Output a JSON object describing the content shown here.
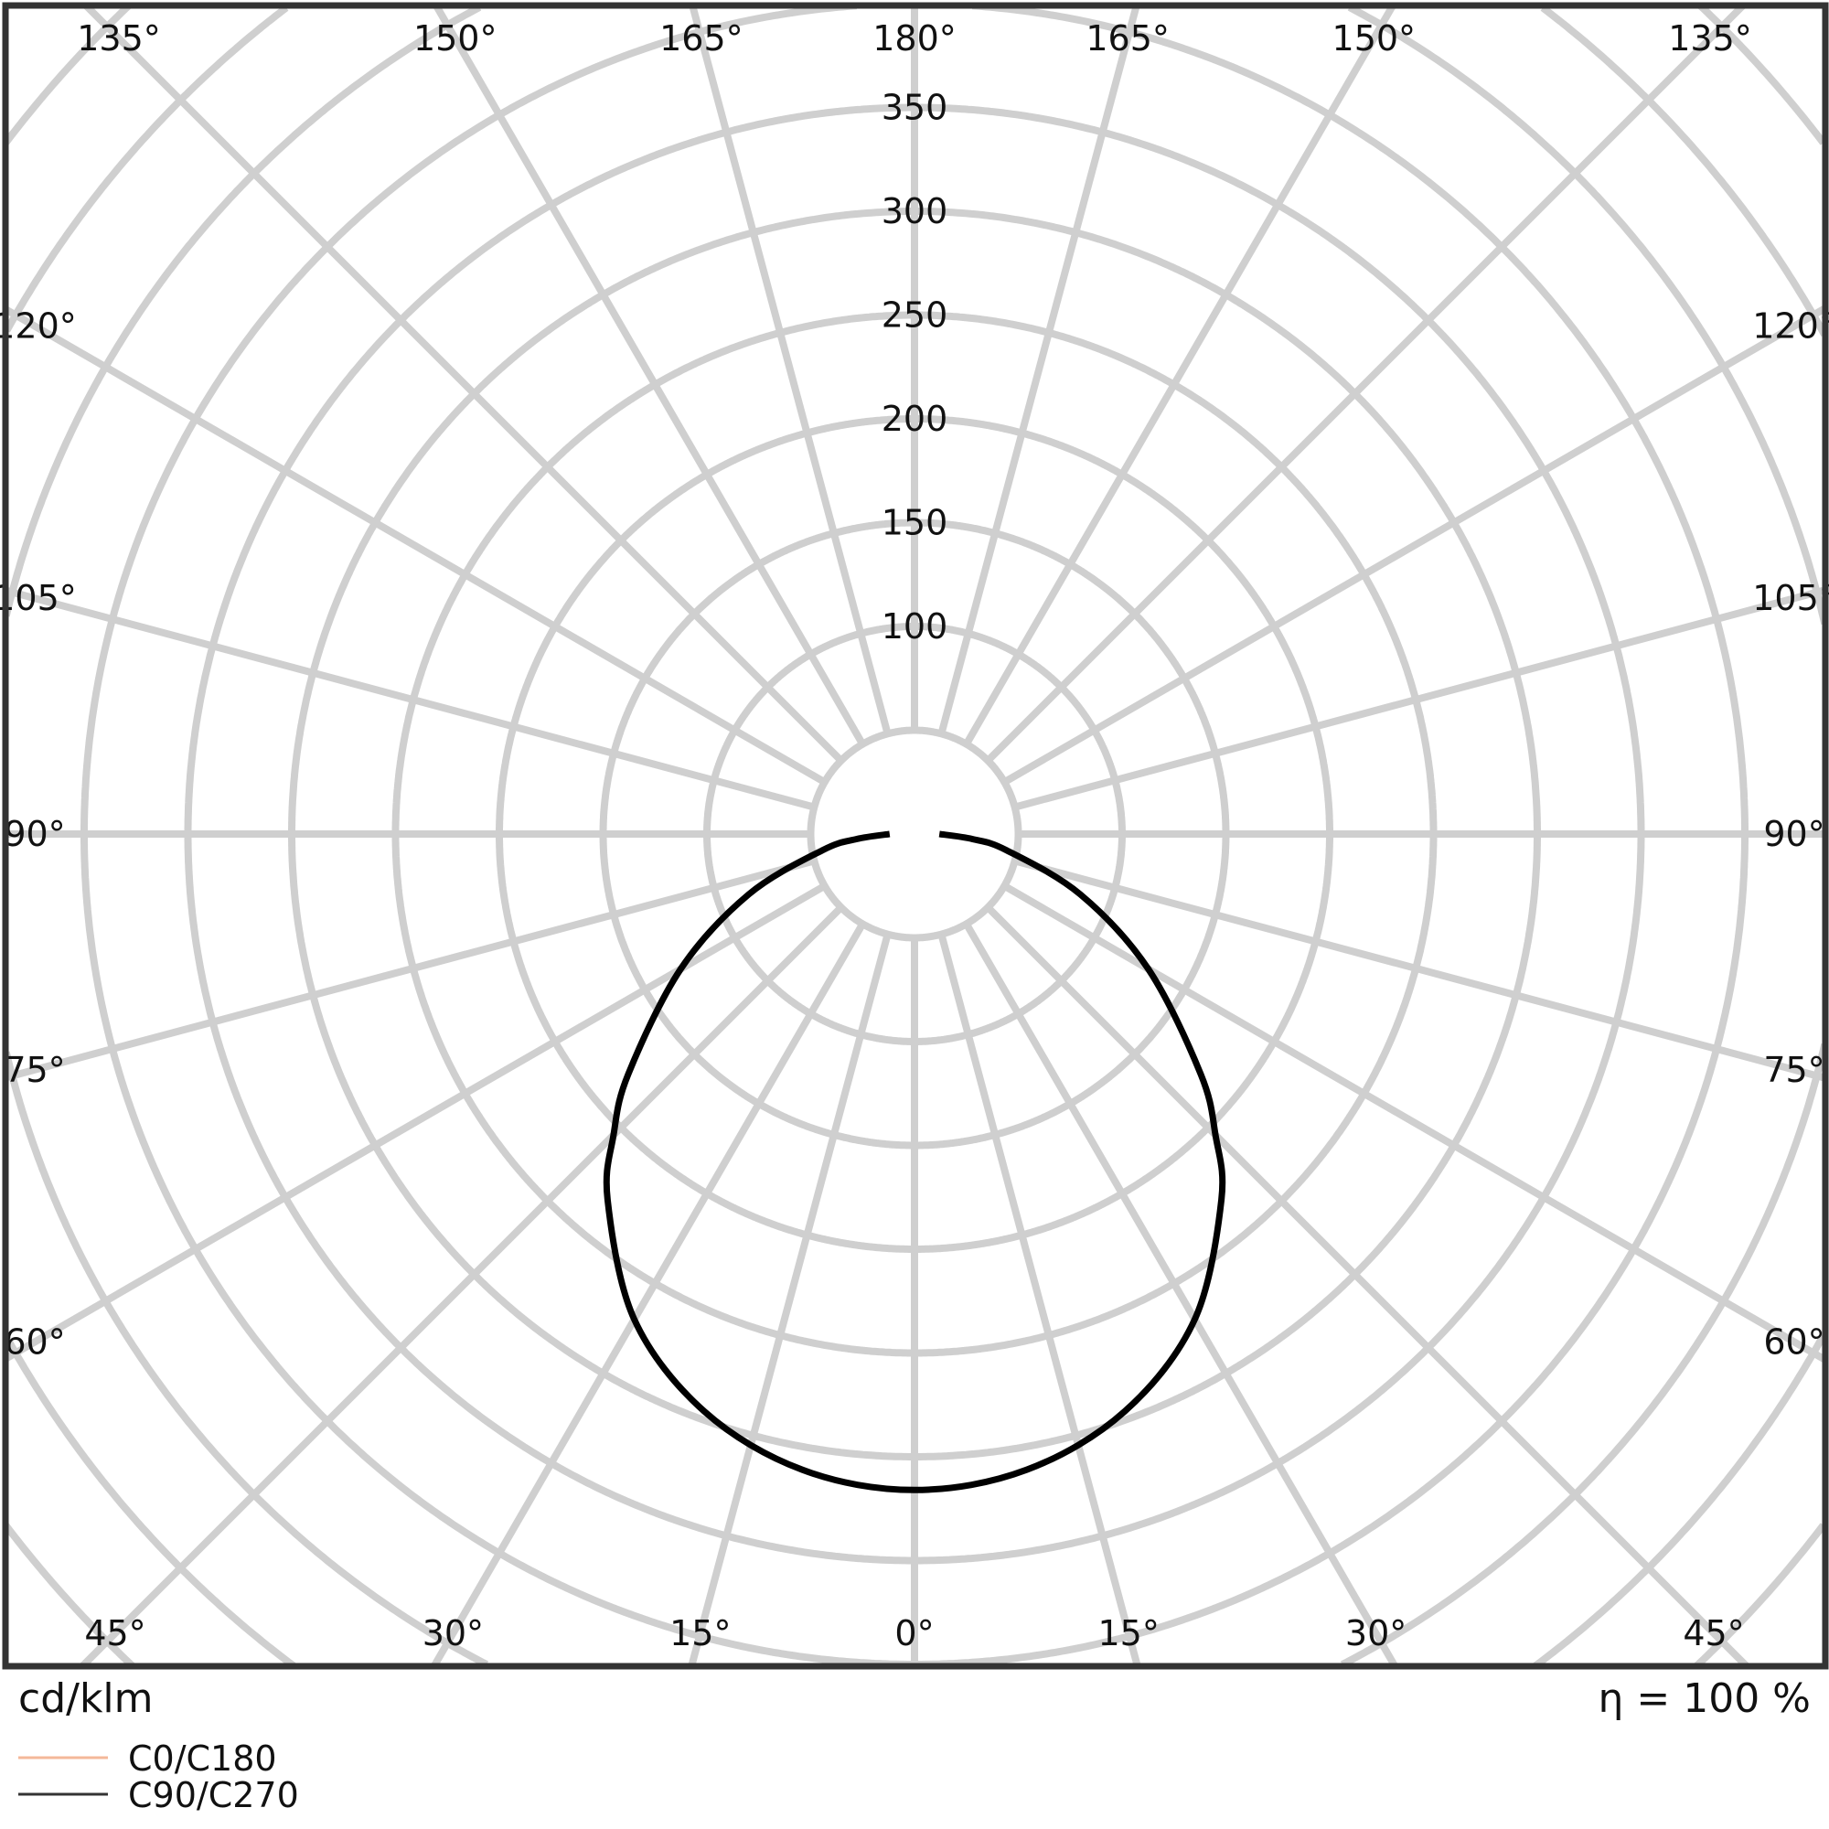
{
  "chart_data": {
    "type": "polar",
    "unit_label": "cd/klm",
    "efficiency_label": "η = 100 %",
    "radial_ticks": [
      100,
      150,
      200,
      250,
      300,
      350
    ],
    "radial_grid_step": 50,
    "angle_grid_step_deg": 15,
    "angle_labels_bottom": [
      "45°",
      "30°",
      "15°",
      "0°",
      "15°",
      "30°",
      "45°"
    ],
    "angle_labels_top": [
      "135°",
      "150°",
      "165°",
      "180°",
      "165°",
      "150°",
      "135°"
    ],
    "angle_labels_sides": [
      "60°",
      "75°",
      "90°",
      "105°",
      "120°"
    ],
    "grid": true,
    "legend_placement": "bottom-left",
    "series": [
      {
        "name": "C0/C180",
        "color": "#f4b89a",
        "angles": [
          0,
          10,
          20,
          30,
          40,
          45,
          50,
          60,
          70,
          80,
          85,
          90
        ],
        "values": [
          316,
          311,
          296,
          270,
          230,
          205,
          180,
          130,
          85,
          45,
          28,
          12
        ]
      },
      {
        "name": "C90/C270",
        "color": "#000000",
        "angles": [
          0,
          10,
          20,
          30,
          40,
          45,
          50,
          60,
          70,
          80,
          85,
          90
        ],
        "values": [
          316,
          311,
          296,
          270,
          230,
          205,
          180,
          130,
          85,
          45,
          28,
          12
        ]
      }
    ]
  }
}
